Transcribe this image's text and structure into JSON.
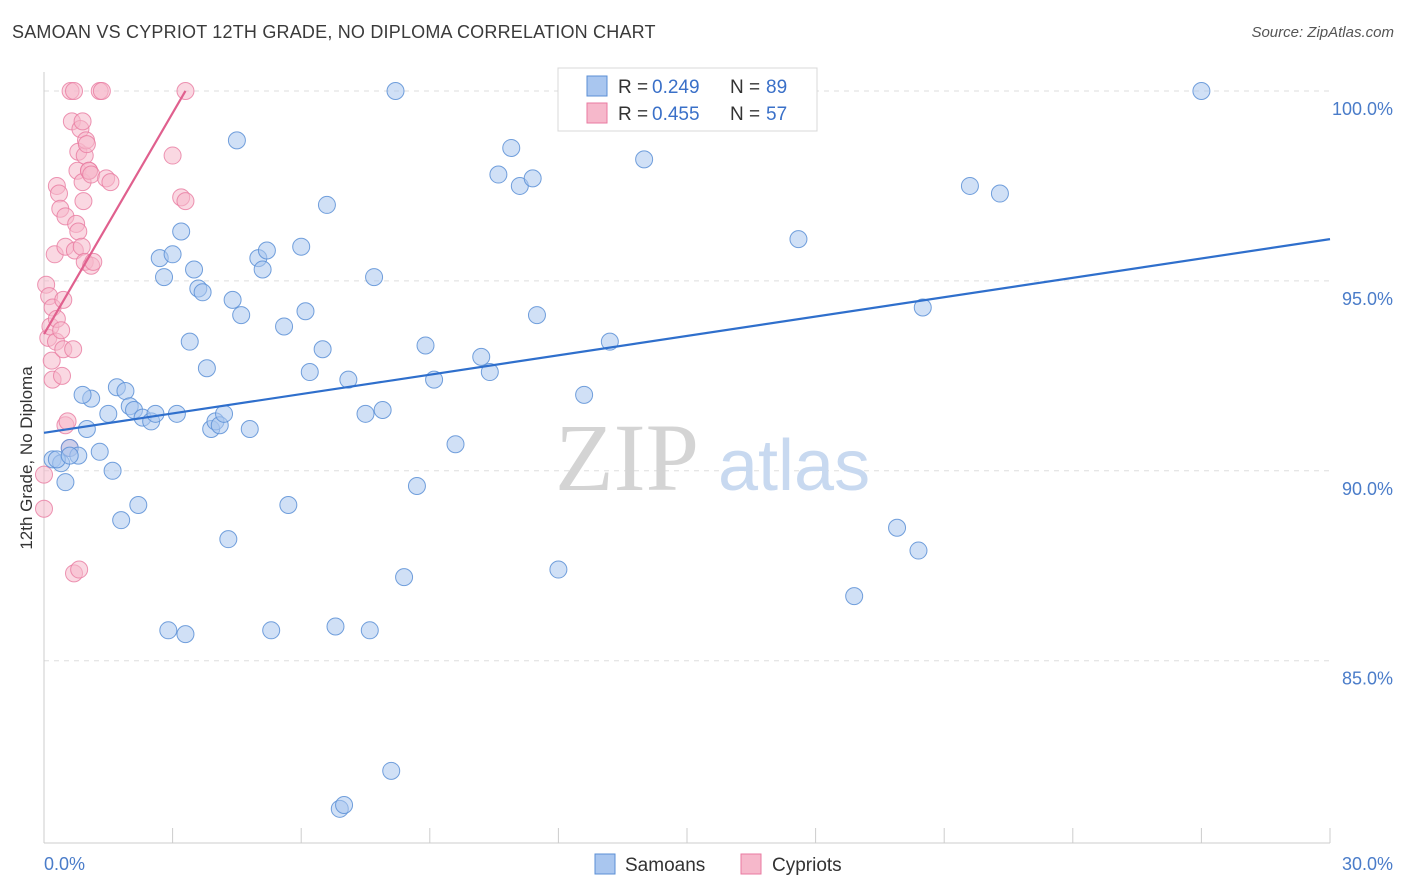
{
  "title": "SAMOAN VS CYPRIOT 12TH GRADE, NO DIPLOMA CORRELATION CHART",
  "source": "Source: ZipAtlas.com",
  "watermark": {
    "zip": "ZIP",
    "atlas": "atlas"
  },
  "colors": {
    "samoan_fill": "#a9c6ef",
    "samoan_stroke": "#5b8fd6",
    "samoan_line": "#2f6fcc",
    "cypriot_fill": "#f6b8cb",
    "cypriot_stroke": "#e97aa0",
    "cypriot_line": "#e0608e",
    "axis_text": "#4a7cc9",
    "grid": "#dddddd"
  },
  "legend": {
    "rows": [
      {
        "r_label": "R = ",
        "r_value": "0.249",
        "n_label": "N = ",
        "n_value": "89"
      },
      {
        "r_label": "R = ",
        "r_value": "0.455",
        "n_label": "N = ",
        "n_value": "57"
      }
    ]
  },
  "bottom_legend": [
    "Samoans",
    "Cypriots"
  ],
  "chart_data": {
    "type": "scatter",
    "xlabel": "",
    "ylabel": "12th Grade, No Diploma",
    "xlim": [
      0,
      30
    ],
    "ylim": [
      80.2,
      100.5
    ],
    "x_tick_labels": [
      {
        "value": 0,
        "label": "0.0%"
      },
      {
        "value": 30,
        "label": "30.0%"
      }
    ],
    "y_tick_labels": [
      {
        "value": 100,
        "label": "100.0%"
      },
      {
        "value": 95,
        "label": "95.0%"
      },
      {
        "value": 90,
        "label": "90.0%"
      },
      {
        "value": 85,
        "label": "85.0%"
      }
    ],
    "grid": true,
    "series": [
      {
        "name": "Samoans",
        "trend": {
          "x": [
            0,
            30
          ],
          "y": [
            91.0,
            96.1
          ]
        },
        "points": [
          [
            0.2,
            90.3
          ],
          [
            0.4,
            90.2
          ],
          [
            0.5,
            89.7
          ],
          [
            0.6,
            90.6
          ],
          [
            0.8,
            90.4
          ],
          [
            1.0,
            91.1
          ],
          [
            1.1,
            91.9
          ],
          [
            0.9,
            92.0
          ],
          [
            1.3,
            90.5
          ],
          [
            1.6,
            90.0
          ],
          [
            1.5,
            91.5
          ],
          [
            1.7,
            92.2
          ],
          [
            1.9,
            92.1
          ],
          [
            2.0,
            91.7
          ],
          [
            2.1,
            91.6
          ],
          [
            1.8,
            88.7
          ],
          [
            2.2,
            89.1
          ],
          [
            2.3,
            91.4
          ],
          [
            2.5,
            91.3
          ],
          [
            2.6,
            91.5
          ],
          [
            2.7,
            95.6
          ],
          [
            2.8,
            95.1
          ],
          [
            2.9,
            85.8
          ],
          [
            3.0,
            95.7
          ],
          [
            3.1,
            91.5
          ],
          [
            3.2,
            96.3
          ],
          [
            3.3,
            85.7
          ],
          [
            3.4,
            93.4
          ],
          [
            3.5,
            95.3
          ],
          [
            3.6,
            94.8
          ],
          [
            3.7,
            94.7
          ],
          [
            3.8,
            92.7
          ],
          [
            3.9,
            91.1
          ],
          [
            4.0,
            91.3
          ],
          [
            4.1,
            91.2
          ],
          [
            4.2,
            91.5
          ],
          [
            4.3,
            88.2
          ],
          [
            4.4,
            94.5
          ],
          [
            4.5,
            98.7
          ],
          [
            4.6,
            94.1
          ],
          [
            4.8,
            91.1
          ],
          [
            5.0,
            95.6
          ],
          [
            5.1,
            95.3
          ],
          [
            5.2,
            95.8
          ],
          [
            5.3,
            85.8
          ],
          [
            5.6,
            93.8
          ],
          [
            5.7,
            89.1
          ],
          [
            6.0,
            95.9
          ],
          [
            6.1,
            94.2
          ],
          [
            6.2,
            92.6
          ],
          [
            6.5,
            93.2
          ],
          [
            6.6,
            97.0
          ],
          [
            6.8,
            85.9
          ],
          [
            6.9,
            81.1
          ],
          [
            7.0,
            81.2
          ],
          [
            7.1,
            92.4
          ],
          [
            7.5,
            91.5
          ],
          [
            7.6,
            85.8
          ],
          [
            7.7,
            95.1
          ],
          [
            7.9,
            91.6
          ],
          [
            8.1,
            82.1
          ],
          [
            8.2,
            100.0
          ],
          [
            8.4,
            87.2
          ],
          [
            8.7,
            89.6
          ],
          [
            8.9,
            93.3
          ],
          [
            9.1,
            92.4
          ],
          [
            9.6,
            90.7
          ],
          [
            10.2,
            93.0
          ],
          [
            10.4,
            92.6
          ],
          [
            10.6,
            97.8
          ],
          [
            10.9,
            98.5
          ],
          [
            11.1,
            97.5
          ],
          [
            11.4,
            97.7
          ],
          [
            11.5,
            94.1
          ],
          [
            12.0,
            87.4
          ],
          [
            12.6,
            92.0
          ],
          [
            13.2,
            93.4
          ],
          [
            14.0,
            98.2
          ],
          [
            15.0,
            100.0
          ],
          [
            17.6,
            96.1
          ],
          [
            18.9,
            86.7
          ],
          [
            19.9,
            88.5
          ],
          [
            20.4,
            87.9
          ],
          [
            20.5,
            94.3
          ],
          [
            21.6,
            97.5
          ],
          [
            22.3,
            97.3
          ],
          [
            27.0,
            100.0
          ],
          [
            0.3,
            90.3
          ],
          [
            0.6,
            90.4
          ]
        ]
      },
      {
        "name": "Cypriots",
        "trend": {
          "x": [
            0,
            3.3
          ],
          "y": [
            93.6,
            100.0
          ]
        },
        "points": [
          [
            0.0,
            89.0
          ],
          [
            0.0,
            89.9
          ],
          [
            0.05,
            94.9
          ],
          [
            0.1,
            93.5
          ],
          [
            0.12,
            94.6
          ],
          [
            0.15,
            93.8
          ],
          [
            0.18,
            92.9
          ],
          [
            0.2,
            92.4
          ],
          [
            0.2,
            94.3
          ],
          [
            0.25,
            95.7
          ],
          [
            0.28,
            93.4
          ],
          [
            0.3,
            94.0
          ],
          [
            0.3,
            97.5
          ],
          [
            0.35,
            97.3
          ],
          [
            0.38,
            96.9
          ],
          [
            0.4,
            93.7
          ],
          [
            0.42,
            92.5
          ],
          [
            0.45,
            93.2
          ],
          [
            0.45,
            94.5
          ],
          [
            0.5,
            95.9
          ],
          [
            0.5,
            96.7
          ],
          [
            0.5,
            91.2
          ],
          [
            0.55,
            91.3
          ],
          [
            0.6,
            90.6
          ],
          [
            0.62,
            100.0
          ],
          [
            0.65,
            99.2
          ],
          [
            0.68,
            93.2
          ],
          [
            0.7,
            100.0
          ],
          [
            0.7,
            87.3
          ],
          [
            0.72,
            95.8
          ],
          [
            0.75,
            96.5
          ],
          [
            0.78,
            97.9
          ],
          [
            0.8,
            98.4
          ],
          [
            0.8,
            96.3
          ],
          [
            0.82,
            87.4
          ],
          [
            0.85,
            99.0
          ],
          [
            0.88,
            95.9
          ],
          [
            0.9,
            97.6
          ],
          [
            0.9,
            99.2
          ],
          [
            0.92,
            97.1
          ],
          [
            0.95,
            98.3
          ],
          [
            0.95,
            95.5
          ],
          [
            0.98,
            98.7
          ],
          [
            1.0,
            98.6
          ],
          [
            1.05,
            97.9
          ],
          [
            1.05,
            97.9
          ],
          [
            1.1,
            97.8
          ],
          [
            1.1,
            95.4
          ],
          [
            1.15,
            95.5
          ],
          [
            1.3,
            100.0
          ],
          [
            1.35,
            100.0
          ],
          [
            1.45,
            97.7
          ],
          [
            1.55,
            97.6
          ],
          [
            3.0,
            98.3
          ],
          [
            3.2,
            97.2
          ],
          [
            3.3,
            97.1
          ],
          [
            3.3,
            100.0
          ]
        ]
      }
    ]
  }
}
